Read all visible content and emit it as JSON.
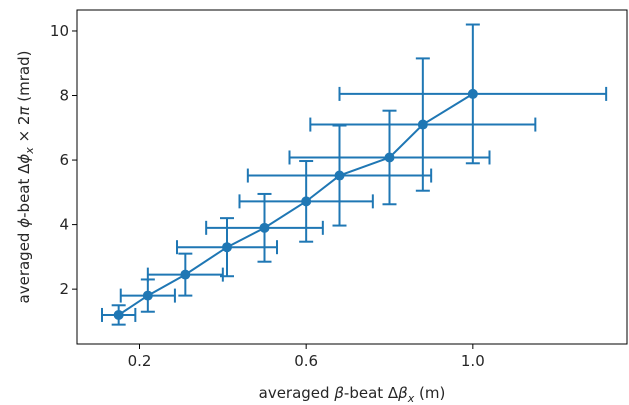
{
  "chart_data": {
    "type": "scatter",
    "title": "",
    "xlabel_parts": [
      "averaged ",
      "β",
      "-beat Δ",
      "β",
      "x",
      " (m)"
    ],
    "ylabel_parts": [
      "averaged ",
      "ϕ",
      "-beat Δ",
      "ϕ",
      "x",
      " × 2",
      "π",
      " (mrad)"
    ],
    "xlim": [
      0.05,
      1.37
    ],
    "ylim": [
      0.3,
      10.65
    ],
    "xticks": [
      0.2,
      0.6,
      1.0
    ],
    "xtick_labels": [
      "0.2",
      "0.6",
      "1.0"
    ],
    "yticks": [
      2,
      4,
      6,
      8,
      10
    ],
    "ytick_labels": [
      "2",
      "4",
      "6",
      "8",
      "10"
    ],
    "grid": false,
    "series": [
      {
        "color": "#1f77b4",
        "marker": "circle",
        "connected": true,
        "x": [
          0.15,
          0.22,
          0.31,
          0.41,
          0.5,
          0.6,
          0.68,
          0.8,
          0.88,
          1.0
        ],
        "y": [
          1.2,
          1.8,
          2.45,
          3.3,
          3.9,
          4.72,
          5.52,
          6.08,
          7.1,
          8.05
        ],
        "xerr": [
          0.04,
          0.065,
          0.09,
          0.12,
          0.14,
          0.16,
          0.22,
          0.24,
          0.27,
          0.32
        ],
        "yerr": [
          0.3,
          0.5,
          0.65,
          0.9,
          1.05,
          1.25,
          1.55,
          1.45,
          2.05,
          2.15
        ]
      }
    ]
  }
}
